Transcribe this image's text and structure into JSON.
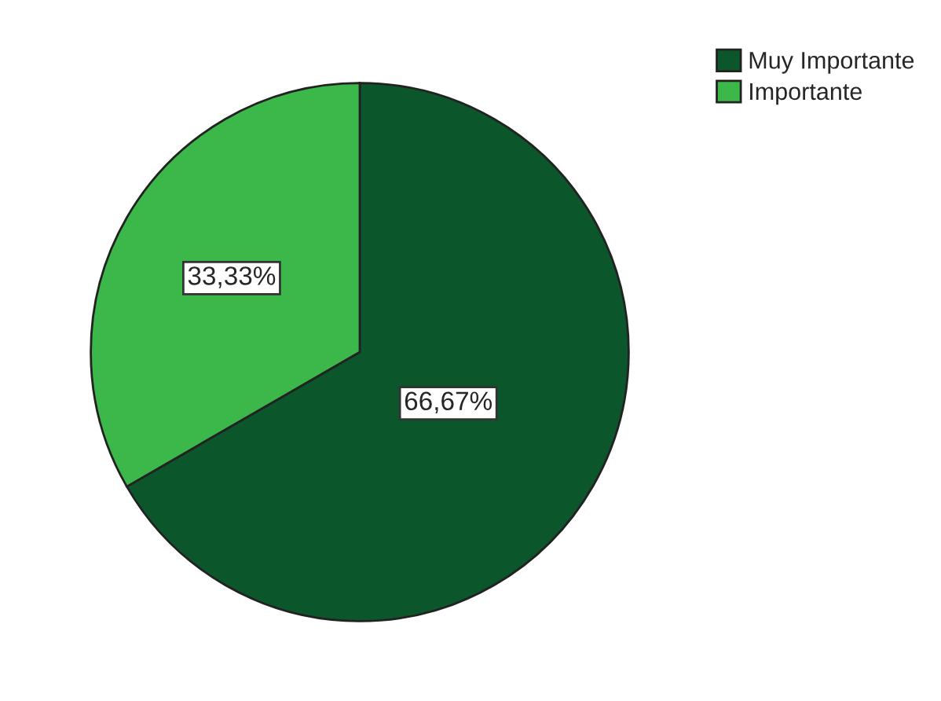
{
  "chart_data": {
    "type": "pie",
    "categories": [
      "Muy Importante",
      "Importante"
    ],
    "values": [
      66.67,
      33.33
    ],
    "colors": [
      "#0c562b",
      "#3cb84a"
    ],
    "value_labels": [
      "66,67%",
      "33,33%"
    ],
    "legend": "top right"
  }
}
